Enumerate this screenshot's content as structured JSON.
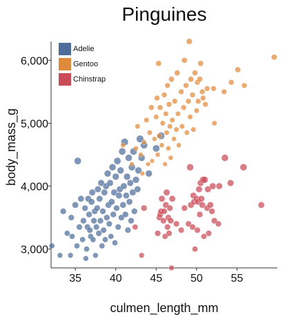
{
  "chart_data": {
    "type": "scatter",
    "title": "Pinguines",
    "xlabel": "culmen_length_mm",
    "ylabel": "body_mass_g",
    "xlim": [
      32,
      60
    ],
    "ylim": [
      2700,
      6300
    ],
    "x_ticks": [
      35,
      40,
      45,
      50,
      55
    ],
    "x_tick_labels": [
      "35",
      "40",
      "45",
      "50",
      "55"
    ],
    "y_ticks": [
      3000,
      4000,
      5000,
      6000
    ],
    "y_tick_labels": [
      "3,000",
      "4,000",
      "5,000",
      "6,000"
    ],
    "grid": false,
    "legend_position": "top-left",
    "series": [
      {
        "name": "Adelie",
        "color": "#4f6d9a",
        "points": [
          [
            32.1,
            3050,
            12
          ],
          [
            33.1,
            2900,
            11
          ],
          [
            33.5,
            3600,
            14
          ],
          [
            34.0,
            3250,
            12
          ],
          [
            34.4,
            2900,
            11
          ],
          [
            34.5,
            3500,
            13
          ],
          [
            34.6,
            3200,
            12
          ],
          [
            35.0,
            3700,
            15
          ],
          [
            35.2,
            3050,
            12
          ],
          [
            35.3,
            4400,
            19
          ],
          [
            35.5,
            3350,
            13
          ],
          [
            35.7,
            3800,
            15
          ],
          [
            35.9,
            3150,
            12
          ],
          [
            36.0,
            3450,
            14
          ],
          [
            36.2,
            3650,
            14
          ],
          [
            36.3,
            2850,
            11
          ],
          [
            36.4,
            3000,
            12
          ],
          [
            36.5,
            3350,
            13
          ],
          [
            36.6,
            3800,
            15
          ],
          [
            36.7,
            3550,
            14
          ],
          [
            36.8,
            3300,
            13
          ],
          [
            36.9,
            3200,
            12
          ],
          [
            37.0,
            3750,
            15
          ],
          [
            37.1,
            3900,
            16
          ],
          [
            37.2,
            3150,
            12
          ],
          [
            37.3,
            3450,
            14
          ],
          [
            37.4,
            3600,
            14
          ],
          [
            37.5,
            2900,
            11
          ],
          [
            37.6,
            3350,
            13
          ],
          [
            37.7,
            3650,
            14
          ],
          [
            37.8,
            3950,
            16
          ],
          [
            37.9,
            3250,
            13
          ],
          [
            38.0,
            3800,
            15
          ],
          [
            38.1,
            3450,
            14
          ],
          [
            38.2,
            4050,
            16
          ],
          [
            38.3,
            3050,
            12
          ],
          [
            38.4,
            3600,
            14
          ],
          [
            38.5,
            3300,
            13
          ],
          [
            38.6,
            3900,
            16
          ],
          [
            38.7,
            3150,
            12
          ],
          [
            38.8,
            4000,
            16
          ],
          [
            38.9,
            3500,
            14
          ],
          [
            39.0,
            4200,
            17
          ],
          [
            39.1,
            3700,
            15
          ],
          [
            39.2,
            3400,
            13
          ],
          [
            39.3,
            4050,
            16
          ],
          [
            39.4,
            3200,
            12
          ],
          [
            39.5,
            3750,
            15
          ],
          [
            39.6,
            4300,
            18
          ],
          [
            39.7,
            3550,
            14
          ],
          [
            39.8,
            3900,
            16
          ],
          [
            39.9,
            3100,
            12
          ],
          [
            40.0,
            4150,
            17
          ],
          [
            40.1,
            3650,
            14
          ],
          [
            40.2,
            4400,
            19
          ],
          [
            40.3,
            3350,
            13
          ],
          [
            40.4,
            3850,
            15
          ],
          [
            40.5,
            3950,
            16
          ],
          [
            40.6,
            4250,
            17
          ],
          [
            40.7,
            3500,
            14
          ],
          [
            40.8,
            4550,
            19
          ],
          [
            40.9,
            3700,
            15
          ],
          [
            41.0,
            4000,
            16
          ],
          [
            41.1,
            4700,
            20
          ],
          [
            41.2,
            3550,
            14
          ],
          [
            41.3,
            3850,
            15
          ],
          [
            41.4,
            4150,
            17
          ],
          [
            41.5,
            3300,
            13
          ],
          [
            41.6,
            4450,
            18
          ],
          [
            41.7,
            3750,
            15
          ],
          [
            41.8,
            4050,
            16
          ],
          [
            41.9,
            3450,
            14
          ],
          [
            42.0,
            4300,
            18
          ],
          [
            42.1,
            3900,
            16
          ],
          [
            42.2,
            4550,
            19
          ],
          [
            42.3,
            3600,
            14
          ],
          [
            42.5,
            4100,
            17
          ],
          [
            42.7,
            3950,
            16
          ],
          [
            42.8,
            4250,
            17
          ],
          [
            43.0,
            4750,
            20
          ],
          [
            43.2,
            4450,
            18
          ],
          [
            43.5,
            4650,
            19
          ],
          [
            44.1,
            4200,
            17
          ],
          [
            45.0,
            4600,
            19
          ],
          [
            45.6,
            4800,
            20
          ]
        ]
      },
      {
        "name": "Gentoo",
        "color": "#e08b3b",
        "points": [
          [
            40.9,
            4650,
            9
          ],
          [
            42.0,
            4350,
            8
          ],
          [
            42.5,
            4600,
            9
          ],
          [
            42.7,
            4950,
            10
          ],
          [
            43.1,
            4500,
            9
          ],
          [
            43.3,
            4200,
            8
          ],
          [
            43.5,
            4700,
            9
          ],
          [
            43.8,
            5050,
            10
          ],
          [
            44.0,
            4350,
            8
          ],
          [
            44.2,
            4850,
            10
          ],
          [
            44.4,
            5250,
            11
          ],
          [
            44.5,
            4400,
            8
          ],
          [
            44.8,
            4750,
            9
          ],
          [
            45.0,
            5100,
            10
          ],
          [
            45.1,
            5400,
            11
          ],
          [
            45.2,
            4500,
            9
          ],
          [
            45.3,
            5950,
            12
          ],
          [
            45.4,
            4800,
            10
          ],
          [
            45.5,
            5250,
            11
          ],
          [
            45.7,
            4650,
            9
          ],
          [
            45.8,
            5000,
            10
          ],
          [
            46.0,
            5450,
            11
          ],
          [
            46.1,
            4350,
            8
          ],
          [
            46.2,
            5150,
            10
          ],
          [
            46.3,
            4850,
            10
          ],
          [
            46.4,
            5600,
            11
          ],
          [
            46.5,
            4600,
            9
          ],
          [
            46.6,
            5300,
            11
          ],
          [
            46.7,
            4950,
            10
          ],
          [
            46.8,
            4450,
            9
          ],
          [
            46.9,
            5700,
            12
          ],
          [
            47.0,
            5050,
            10
          ],
          [
            47.2,
            4750,
            9
          ],
          [
            47.3,
            5350,
            11
          ],
          [
            47.5,
            4900,
            10
          ],
          [
            47.6,
            5800,
            12
          ],
          [
            47.7,
            5150,
            10
          ],
          [
            47.8,
            4650,
            9
          ],
          [
            48.1,
            5500,
            11
          ],
          [
            48.2,
            4950,
            10
          ],
          [
            48.4,
            5250,
            11
          ],
          [
            48.5,
            6000,
            12
          ],
          [
            48.7,
            5600,
            11
          ],
          [
            48.8,
            4850,
            10
          ],
          [
            49.0,
            5350,
            11
          ],
          [
            49.1,
            6300,
            13
          ],
          [
            49.2,
            5100,
            10
          ],
          [
            49.3,
            5700,
            12
          ],
          [
            49.5,
            5450,
            11
          ],
          [
            49.6,
            4900,
            10
          ],
          [
            49.8,
            5800,
            12
          ],
          [
            50.0,
            5200,
            10
          ],
          [
            50.1,
            5650,
            11
          ],
          [
            50.2,
            5350,
            11
          ],
          [
            50.4,
            5700,
            12
          ],
          [
            50.5,
            5950,
            12
          ],
          [
            50.7,
            5500,
            11
          ],
          [
            50.8,
            5400,
            11
          ],
          [
            51.1,
            5300,
            11
          ],
          [
            51.3,
            5550,
            11
          ],
          [
            52.1,
            5550,
            11
          ],
          [
            52.2,
            5000,
            10
          ],
          [
            53.4,
            5500,
            11
          ],
          [
            54.3,
            5650,
            11
          ],
          [
            55.1,
            5850,
            12
          ],
          [
            55.9,
            5600,
            11
          ],
          [
            59.6,
            6050,
            12
          ]
        ]
      },
      {
        "name": "Chinstrap",
        "color": "#c94b57",
        "points": [
          [
            42.4,
            3350,
            12
          ],
          [
            43.2,
            2900,
            11
          ],
          [
            43.5,
            3650,
            14
          ],
          [
            45.2,
            3250,
            13
          ],
          [
            45.4,
            3500,
            14
          ],
          [
            45.5,
            3550,
            14
          ],
          [
            45.6,
            3600,
            14
          ],
          [
            45.7,
            3800,
            15
          ],
          [
            45.9,
            3450,
            14
          ],
          [
            46.0,
            3600,
            14
          ],
          [
            46.1,
            3200,
            12
          ],
          [
            46.2,
            3700,
            15
          ],
          [
            46.3,
            3900,
            16
          ],
          [
            46.4,
            3350,
            13
          ],
          [
            46.5,
            3500,
            14
          ],
          [
            46.6,
            3250,
            13
          ],
          [
            46.7,
            3650,
            14
          ],
          [
            46.8,
            3450,
            14
          ],
          [
            46.9,
            2700,
            11
          ],
          [
            47.0,
            3800,
            15
          ],
          [
            47.5,
            3400,
            13
          ],
          [
            48.1,
            3300,
            13
          ],
          [
            48.5,
            3650,
            14
          ],
          [
            49.0,
            3400,
            13
          ],
          [
            49.2,
            4300,
            18
          ],
          [
            49.3,
            3700,
            15
          ],
          [
            49.5,
            3350,
            13
          ],
          [
            49.6,
            3850,
            15
          ],
          [
            49.7,
            3750,
            15
          ],
          [
            49.8,
            3000,
            12
          ],
          [
            50.0,
            3800,
            15
          ],
          [
            50.1,
            3300,
            13
          ],
          [
            50.2,
            3750,
            15
          ],
          [
            50.3,
            3950,
            16
          ],
          [
            50.4,
            3550,
            14
          ],
          [
            50.5,
            4050,
            16
          ],
          [
            50.6,
            3800,
            15
          ],
          [
            50.7,
            3700,
            15
          ],
          [
            50.8,
            4100,
            17
          ],
          [
            50.9,
            3200,
            12
          ],
          [
            51.0,
            4100,
            17
          ],
          [
            51.3,
            3650,
            14
          ],
          [
            51.4,
            3950,
            16
          ],
          [
            51.5,
            3250,
            13
          ],
          [
            51.7,
            3700,
            15
          ],
          [
            51.9,
            3600,
            14
          ],
          [
            52.0,
            4000,
            16
          ],
          [
            52.2,
            3450,
            14
          ],
          [
            52.7,
            3400,
            13
          ],
          [
            52.8,
            4000,
            16
          ],
          [
            53.5,
            4450,
            18
          ],
          [
            54.2,
            4050,
            16
          ],
          [
            55.8,
            4300,
            18
          ],
          [
            58.0,
            3700,
            15
          ]
        ]
      }
    ]
  }
}
